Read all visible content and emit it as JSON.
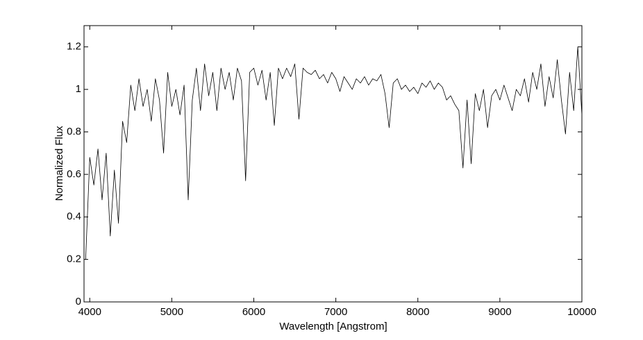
{
  "chart_data": {
    "type": "line",
    "xlabel": "Wavelength [Angstrom]",
    "ylabel": "Normalized Flux",
    "xlim": [
      3930,
      10000
    ],
    "ylim": [
      0,
      1.3
    ],
    "xticks": [
      4000,
      5000,
      6000,
      7000,
      8000,
      9000,
      10000
    ],
    "yticks": [
      0,
      0.2,
      0.4,
      0.6,
      0.8,
      1,
      1.2
    ],
    "grid": false,
    "series": [
      {
        "color": "#000000",
        "x": [
          3950,
          4000,
          4050,
          4100,
          4150,
          4200,
          4250,
          4300,
          4350,
          4400,
          4450,
          4500,
          4550,
          4600,
          4650,
          4700,
          4750,
          4800,
          4850,
          4900,
          4950,
          5000,
          5050,
          5100,
          5150,
          5200,
          5250,
          5300,
          5350,
          5400,
          5450,
          5500,
          5550,
          5600,
          5650,
          5700,
          5750,
          5800,
          5850,
          5900,
          5950,
          6000,
          6050,
          6100,
          6150,
          6200,
          6250,
          6300,
          6350,
          6400,
          6450,
          6500,
          6550,
          6600,
          6650,
          6700,
          6750,
          6800,
          6850,
          6900,
          6950,
          7000,
          7050,
          7100,
          7150,
          7200,
          7250,
          7300,
          7350,
          7400,
          7450,
          7500,
          7550,
          7600,
          7650,
          7700,
          7750,
          7800,
          7850,
          7900,
          7950,
          8000,
          8050,
          8100,
          8150,
          8200,
          8250,
          8300,
          8350,
          8400,
          8450,
          8500,
          8550,
          8600,
          8650,
          8700,
          8750,
          8800,
          8850,
          8900,
          8950,
          9000,
          9050,
          9100,
          9150,
          9200,
          9250,
          9300,
          9350,
          9400,
          9450,
          9500,
          9550,
          9600,
          9650,
          9700,
          9750,
          9800,
          9850,
          9900,
          9950,
          10000
        ],
        "values": [
          0.2,
          0.68,
          0.55,
          0.72,
          0.48,
          0.7,
          0.31,
          0.62,
          0.37,
          0.85,
          0.75,
          1.02,
          0.9,
          1.05,
          0.92,
          1.0,
          0.85,
          1.05,
          0.95,
          0.7,
          1.08,
          0.92,
          1.0,
          0.88,
          1.02,
          0.48,
          0.95,
          1.1,
          0.9,
          1.12,
          0.97,
          1.08,
          0.9,
          1.1,
          1.0,
          1.08,
          0.95,
          1.1,
          1.04,
          0.57,
          1.08,
          1.1,
          1.02,
          1.09,
          0.95,
          1.08,
          0.83,
          1.1,
          1.05,
          1.1,
          1.06,
          1.12,
          0.86,
          1.1,
          1.08,
          1.07,
          1.09,
          1.05,
          1.07,
          1.03,
          1.08,
          1.05,
          0.99,
          1.06,
          1.03,
          1.0,
          1.05,
          1.03,
          1.06,
          1.02,
          1.05,
          1.04,
          1.07,
          0.98,
          0.82,
          1.03,
          1.05,
          1.0,
          1.02,
          0.99,
          1.01,
          0.98,
          1.03,
          1.01,
          1.04,
          1.0,
          1.03,
          1.01,
          0.95,
          0.97,
          0.93,
          0.9,
          0.63,
          0.95,
          0.65,
          0.98,
          0.9,
          1.0,
          0.82,
          0.97,
          1.0,
          0.95,
          1.02,
          0.96,
          0.9,
          1.0,
          0.97,
          1.05,
          0.94,
          1.08,
          1.0,
          1.12,
          0.92,
          1.06,
          0.96,
          1.14,
          0.95,
          0.79,
          1.08,
          0.9,
          1.2,
          0.88
        ]
      }
    ]
  }
}
